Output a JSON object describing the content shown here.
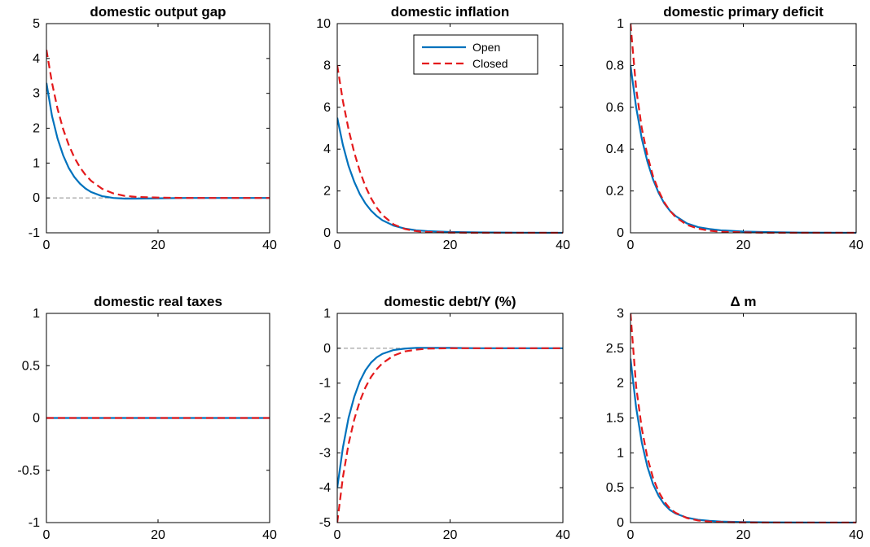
{
  "colors": {
    "open": "#0072BD",
    "closed": "#E41A1C",
    "zero_line": "#8c8c8c",
    "axes": "#000000"
  },
  "legend": {
    "open_label": "Open",
    "closed_label": "Closed",
    "panel": 1,
    "placement": "top-right"
  },
  "chart_data": [
    {
      "type": "line",
      "title": "domestic output gap",
      "xlim": [
        0,
        40
      ],
      "ylim": [
        -1,
        5
      ],
      "xticks": [
        0,
        20,
        40
      ],
      "yticks": [
        -1,
        0,
        1,
        2,
        3,
        4,
        5
      ],
      "ytick_labels": [
        "-1",
        "0",
        "1",
        "2",
        "3",
        "4",
        "5"
      ],
      "zero_line": true,
      "series": [
        {
          "name": "Open",
          "x": [
            0,
            1,
            2,
            3,
            4,
            5,
            6,
            7,
            8,
            10,
            12,
            14,
            16,
            20,
            25,
            30,
            40
          ],
          "y": [
            3.3,
            2.35,
            1.7,
            1.22,
            0.86,
            0.6,
            0.41,
            0.27,
            0.17,
            0.05,
            0.0,
            -0.02,
            -0.02,
            -0.01,
            0,
            0,
            0
          ]
        },
        {
          "name": "Closed",
          "x": [
            0,
            1,
            2,
            3,
            4,
            5,
            6,
            7,
            8,
            10,
            12,
            14,
            16,
            20,
            25,
            30,
            40
          ],
          "y": [
            4.25,
            3.3,
            2.55,
            1.97,
            1.52,
            1.16,
            0.88,
            0.66,
            0.49,
            0.26,
            0.13,
            0.06,
            0.03,
            0.01,
            0,
            0,
            0
          ]
        }
      ]
    },
    {
      "type": "line",
      "title": "domestic inflation",
      "xlim": [
        0,
        40
      ],
      "ylim": [
        0,
        10
      ],
      "xticks": [
        0,
        20,
        40
      ],
      "yticks": [
        0,
        2,
        4,
        6,
        8,
        10
      ],
      "ytick_labels": [
        "0",
        "2",
        "4",
        "6",
        "8",
        "10"
      ],
      "zero_line": false,
      "series": [
        {
          "name": "Open",
          "x": [
            0,
            1,
            2,
            3,
            4,
            5,
            6,
            7,
            8,
            10,
            12,
            14,
            16,
            20,
            25,
            30,
            40
          ],
          "y": [
            5.5,
            4.2,
            3.2,
            2.45,
            1.85,
            1.4,
            1.06,
            0.8,
            0.6,
            0.34,
            0.2,
            0.12,
            0.08,
            0.04,
            0.02,
            0.01,
            0
          ]
        },
        {
          "name": "Closed",
          "x": [
            0,
            1,
            2,
            3,
            4,
            5,
            6,
            7,
            8,
            10,
            12,
            14,
            16,
            20,
            25,
            30,
            40
          ],
          "y": [
            8.0,
            6.3,
            4.95,
            3.85,
            2.95,
            2.22,
            1.65,
            1.2,
            0.85,
            0.4,
            0.18,
            0.08,
            0.04,
            0.01,
            0,
            0,
            0
          ]
        }
      ]
    },
    {
      "type": "line",
      "title": "domestic primary deficit",
      "xlim": [
        0,
        40
      ],
      "ylim": [
        0,
        1
      ],
      "xticks": [
        0,
        20,
        40
      ],
      "yticks": [
        0,
        0.2,
        0.4,
        0.6,
        0.8,
        1
      ],
      "ytick_labels": [
        "0",
        "0.2",
        "0.4",
        "0.6",
        "0.8",
        "1"
      ],
      "zero_line": false,
      "series": [
        {
          "name": "Open",
          "x": [
            0,
            1,
            2,
            3,
            4,
            5,
            6,
            7,
            8,
            10,
            12,
            14,
            16,
            20,
            25,
            30,
            40
          ],
          "y": [
            0.8,
            0.6,
            0.45,
            0.34,
            0.255,
            0.19,
            0.14,
            0.105,
            0.08,
            0.045,
            0.027,
            0.018,
            0.012,
            0.006,
            0.003,
            0.001,
            0
          ]
        },
        {
          "name": "Closed",
          "x": [
            0,
            1,
            2,
            3,
            4,
            5,
            6,
            7,
            8,
            10,
            12,
            14,
            16,
            20,
            25,
            30,
            40
          ],
          "y": [
            1.0,
            0.69,
            0.5,
            0.37,
            0.27,
            0.2,
            0.145,
            0.105,
            0.075,
            0.038,
            0.02,
            0.01,
            0.005,
            0.002,
            0,
            0,
            0
          ]
        }
      ]
    },
    {
      "type": "line",
      "title": "domestic real taxes",
      "xlim": [
        0,
        40
      ],
      "ylim": [
        -1,
        1
      ],
      "xticks": [
        0,
        20,
        40
      ],
      "yticks": [
        -1,
        -0.5,
        0,
        0.5,
        1
      ],
      "ytick_labels": [
        "-1",
        "-0.5",
        "0",
        "0.5",
        "1"
      ],
      "zero_line": false,
      "series": [
        {
          "name": "Open",
          "x": [
            0,
            40
          ],
          "y": [
            0,
            0
          ]
        },
        {
          "name": "Closed",
          "x": [
            0,
            40
          ],
          "y": [
            0,
            0
          ]
        }
      ]
    },
    {
      "type": "line",
      "title": "domestic debt/Y (%)",
      "xlim": [
        0,
        40
      ],
      "ylim": [
        -5,
        1
      ],
      "xticks": [
        0,
        20,
        40
      ],
      "yticks": [
        -5,
        -4,
        -3,
        -2,
        -1,
        0,
        1
      ],
      "ytick_labels": [
        "-5",
        "-4",
        "-3",
        "-2",
        "-1",
        "0",
        "1"
      ],
      "zero_line": true,
      "series": [
        {
          "name": "Open",
          "x": [
            0,
            1,
            2,
            3,
            4,
            5,
            6,
            7,
            8,
            10,
            12,
            14,
            16,
            20,
            25,
            30,
            40
          ],
          "y": [
            -4.0,
            -2.85,
            -2.0,
            -1.4,
            -0.95,
            -0.63,
            -0.41,
            -0.26,
            -0.16,
            -0.05,
            -0.01,
            0.01,
            0.01,
            0.01,
            0,
            0,
            0
          ]
        },
        {
          "name": "Closed",
          "x": [
            0,
            1,
            2,
            3,
            4,
            5,
            6,
            7,
            8,
            10,
            12,
            14,
            16,
            20,
            25,
            30,
            40
          ],
          "y": [
            -5.0,
            -3.7,
            -2.75,
            -2.05,
            -1.52,
            -1.12,
            -0.82,
            -0.6,
            -0.43,
            -0.21,
            -0.09,
            -0.04,
            -0.01,
            0,
            0,
            0,
            0
          ]
        }
      ]
    },
    {
      "type": "line",
      "title": "Δ m",
      "xlim": [
        0,
        40
      ],
      "ylim": [
        0,
        3
      ],
      "xticks": [
        0,
        20,
        40
      ],
      "yticks": [
        0,
        0.5,
        1,
        1.5,
        2,
        2.5,
        3
      ],
      "ytick_labels": [
        "0",
        "0.5",
        "1",
        "1.5",
        "2",
        "2.5",
        "3"
      ],
      "zero_line": false,
      "series": [
        {
          "name": "Open",
          "x": [
            0,
            1,
            2,
            3,
            4,
            5,
            6,
            7,
            8,
            10,
            12,
            14,
            16,
            20,
            25,
            30,
            40
          ],
          "y": [
            2.35,
            1.65,
            1.15,
            0.8,
            0.55,
            0.38,
            0.26,
            0.18,
            0.13,
            0.07,
            0.04,
            0.025,
            0.015,
            0.008,
            0.003,
            0.001,
            0
          ]
        },
        {
          "name": "Closed",
          "x": [
            0,
            1,
            2,
            3,
            4,
            5,
            6,
            7,
            8,
            10,
            12,
            14,
            16,
            20,
            25,
            30,
            40
          ],
          "y": [
            3.0,
            1.95,
            1.35,
            0.93,
            0.64,
            0.44,
            0.3,
            0.2,
            0.14,
            0.065,
            0.03,
            0.015,
            0.007,
            0.002,
            0,
            0,
            0
          ]
        }
      ]
    }
  ]
}
